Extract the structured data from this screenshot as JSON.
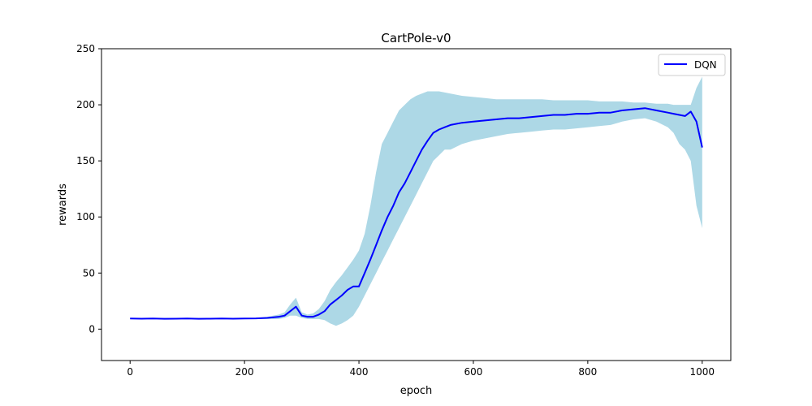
{
  "chart_data": {
    "type": "line",
    "title": "CartPole-v0",
    "xlabel": "epoch",
    "ylabel": "rewards",
    "xlim": [
      -50,
      1050
    ],
    "ylim": [
      -28,
      250
    ],
    "xticks": [
      "0",
      "200",
      "400",
      "600",
      "800",
      "1000"
    ],
    "yticks": [
      "0",
      "50",
      "100",
      "150",
      "200",
      "250"
    ],
    "grid": false,
    "legend": {
      "position": "top-right"
    },
    "colors": {
      "mean_line": "#0000ff",
      "band": "#add8e6"
    },
    "series": [
      {
        "name": "DQN",
        "x": [
          0,
          20,
          40,
          60,
          80,
          100,
          120,
          140,
          160,
          180,
          200,
          220,
          240,
          260,
          270,
          280,
          290,
          300,
          310,
          320,
          330,
          340,
          350,
          360,
          370,
          380,
          390,
          400,
          410,
          420,
          430,
          440,
          450,
          460,
          470,
          480,
          490,
          500,
          510,
          520,
          530,
          540,
          550,
          560,
          580,
          600,
          620,
          640,
          660,
          680,
          700,
          720,
          740,
          760,
          780,
          800,
          820,
          840,
          860,
          880,
          900,
          920,
          940,
          950,
          960,
          970,
          980,
          990,
          1000
        ],
        "mean": [
          9.5,
          9.3,
          9.4,
          9.2,
          9.3,
          9.4,
          9.2,
          9.3,
          9.4,
          9.3,
          9.5,
          9.6,
          10,
          11,
          12,
          16,
          20,
          12,
          11,
          11,
          13,
          16,
          22,
          26,
          30,
          35,
          38,
          38,
          50,
          62,
          75,
          88,
          100,
          110,
          122,
          130,
          140,
          150,
          160,
          168,
          175,
          178,
          180,
          182,
          184,
          185,
          186,
          187,
          188,
          188,
          189,
          190,
          191,
          191,
          192,
          192,
          193,
          193,
          195,
          196,
          197,
          195,
          193,
          192,
          191,
          190,
          194,
          185,
          162
        ],
        "lower": [
          9,
          9,
          9,
          9,
          9,
          9,
          9,
          9,
          9,
          9,
          9,
          9,
          9,
          9,
          10,
          12,
          12,
          10,
          9,
          9,
          9,
          8,
          5,
          3,
          5,
          8,
          12,
          20,
          30,
          40,
          50,
          60,
          70,
          80,
          90,
          100,
          110,
          120,
          130,
          140,
          150,
          155,
          160,
          160,
          165,
          168,
          170,
          172,
          174,
          175,
          176,
          177,
          178,
          178,
          179,
          180,
          181,
          182,
          185,
          187,
          188,
          185,
          180,
          175,
          165,
          160,
          150,
          110,
          90
        ],
        "upper": [
          10,
          10,
          10,
          10,
          10,
          10,
          10,
          10,
          10,
          10,
          10,
          10,
          11,
          13,
          15,
          22,
          28,
          15,
          13,
          14,
          18,
          25,
          35,
          42,
          48,
          55,
          62,
          70,
          85,
          110,
          140,
          165,
          175,
          185,
          195,
          200,
          205,
          208,
          210,
          212,
          212,
          212,
          211,
          210,
          208,
          207,
          206,
          205,
          205,
          205,
          205,
          205,
          204,
          204,
          204,
          204,
          203,
          203,
          203,
          202,
          202,
          201,
          201,
          200,
          200,
          200,
          200,
          215,
          225
        ]
      }
    ]
  }
}
